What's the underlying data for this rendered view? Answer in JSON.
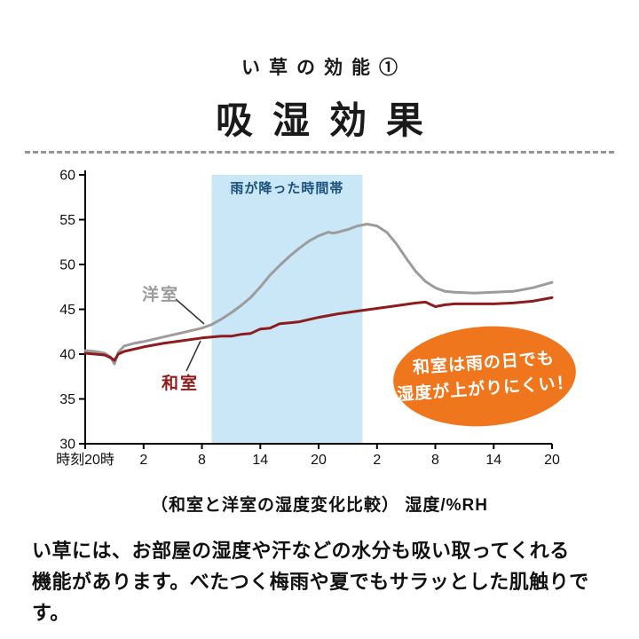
{
  "header": {
    "title_small": "い草の効能①",
    "title_large": "吸湿効果"
  },
  "chart_data": {
    "type": "line",
    "title": "和室と洋室の湿度変化比較",
    "ylabel": "湿度/%RH",
    "caption": "（和室と洋室の湿度変化比較） 湿度/%RH",
    "xlim": [
      0,
      48
    ],
    "ylim": [
      30,
      60
    ],
    "grid": false,
    "y_ticks": [
      60,
      55,
      50,
      45,
      40,
      35,
      30
    ],
    "x_ticks": [
      "時刻20時",
      "2",
      "8",
      "14",
      "20",
      "2",
      "8",
      "14",
      "20"
    ],
    "x_tick_hours": [
      0,
      6,
      12,
      18,
      24,
      30,
      36,
      42,
      48
    ],
    "rain_band": {
      "label": "雨が降った時間帯",
      "x_start_hour": 13,
      "x_end_hour": 28.5,
      "fill": "#c9e7f6",
      "label_color": "#1a4f7a"
    },
    "series": [
      {
        "name": "洋室",
        "color": "#9c9c9c",
        "x": [
          0,
          1,
          2,
          2.6,
          3,
          3.4,
          4,
          5,
          6,
          8,
          10,
          12,
          13,
          14,
          15,
          16,
          17,
          18,
          19,
          20,
          21,
          22,
          23,
          24,
          25,
          25.5,
          26,
          27,
          28,
          29,
          30,
          31,
          32,
          33,
          34,
          35,
          36,
          37,
          38,
          40,
          42,
          44,
          46,
          48
        ],
        "values": [
          40.4,
          40.3,
          40.1,
          39.7,
          38.9,
          40.2,
          40.9,
          41.2,
          41.4,
          41.9,
          42.4,
          42.9,
          43.3,
          43.9,
          44.6,
          45.4,
          46.3,
          47.5,
          48.8,
          49.9,
          50.9,
          51.8,
          52.6,
          53.2,
          53.6,
          53.5,
          53.6,
          53.9,
          54.3,
          54.5,
          54.3,
          53.6,
          52.3,
          50.7,
          49.2,
          48.1,
          47.4,
          47.0,
          46.9,
          46.8,
          46.9,
          47.0,
          47.4,
          48.0
        ]
      },
      {
        "name": "和室",
        "color": "#8e1c1c",
        "x": [
          0,
          1,
          2,
          2.6,
          3,
          3.4,
          4,
          6,
          8,
          10,
          12,
          13,
          14,
          15,
          16,
          17,
          18,
          19,
          20,
          21,
          22,
          24,
          26,
          28,
          30,
          32,
          34,
          35,
          36,
          37,
          38,
          40,
          42,
          44,
          46,
          48
        ],
        "values": [
          40.1,
          40.0,
          39.9,
          39.6,
          39.3,
          40.0,
          40.3,
          40.8,
          41.2,
          41.5,
          41.8,
          41.9,
          42.0,
          42.0,
          42.2,
          42.3,
          42.8,
          42.9,
          43.4,
          43.5,
          43.6,
          44.1,
          44.5,
          44.8,
          45.1,
          45.4,
          45.7,
          45.8,
          45.3,
          45.5,
          45.6,
          45.6,
          45.6,
          45.7,
          45.9,
          46.3
        ]
      }
    ]
  },
  "callout": {
    "line1": "和室は雨の日でも",
    "line2": "湿度が上がりにくい！",
    "bg_color": "#f0761d",
    "text_color": "#ffffff"
  },
  "footer": {
    "line1": "い草には、お部屋の湿度や汗などの水分も吸い取ってくれる",
    "line2": "機能があります。べたつく梅雨や夏でもサラッとした肌触りです。"
  }
}
